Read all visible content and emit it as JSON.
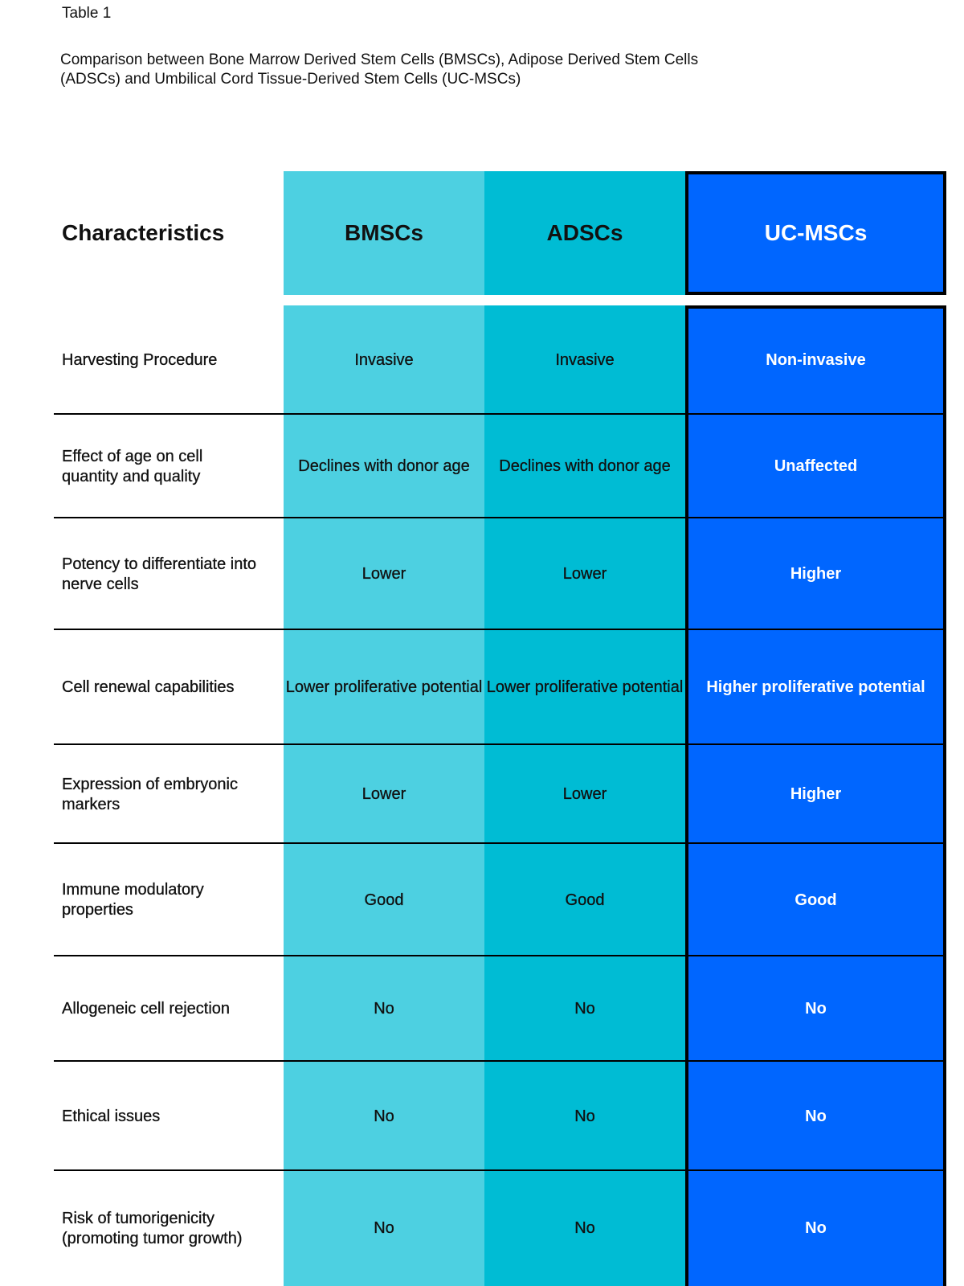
{
  "title": "Table 1",
  "subtitle": "Comparison between Bone Marrow Derived Stem Cells (BMSCs), Adipose Derived Stem Cells (ADSCs) and Umbilical Cord Tissue-Derived Stem Cells (UC-MSCs)",
  "colors": {
    "bmsc": "#4dd0e1",
    "adsc": "#00bcd4",
    "ucmsc": "#0066ff"
  },
  "headers": [
    "Characteristics",
    "BMSCs",
    "ADSCs",
    "UC-MSCs"
  ],
  "rows": [
    {
      "label": "Harvesting Procedure",
      "bmsc": "Invasive",
      "adsc": "Invasive",
      "ucmsc": "Non-invasive"
    },
    {
      "label": "Effect of age on cell quantity and quality",
      "bmsc": "Declines with donor age",
      "adsc": "Declines with donor age",
      "ucmsc": "Unaffected"
    },
    {
      "label": "Potency to differentiate into nerve cells",
      "bmsc": "Lower",
      "adsc": "Lower",
      "ucmsc": "Higher"
    },
    {
      "label": "Cell renewal capabilities",
      "bmsc": "Lower proliferative potential",
      "adsc": "Lower proliferative potential",
      "ucmsc": "Higher proliferative potential"
    },
    {
      "label": "Expression of embryonic markers",
      "bmsc": "Lower",
      "adsc": "Lower",
      "ucmsc": "Higher"
    },
    {
      "label": "Immune modulatory properties",
      "bmsc": "Good",
      "adsc": "Good",
      "ucmsc": "Good"
    },
    {
      "label": "Allogeneic cell rejection",
      "bmsc": "No",
      "adsc": "No",
      "ucmsc": "No"
    },
    {
      "label": "Ethical issues",
      "bmsc": "No",
      "adsc": "No",
      "ucmsc": "No"
    },
    {
      "label": "Risk of tumorigenicity (promoting tumor growth)",
      "bmsc": "No",
      "adsc": "No",
      "ucmsc": "No"
    }
  ]
}
